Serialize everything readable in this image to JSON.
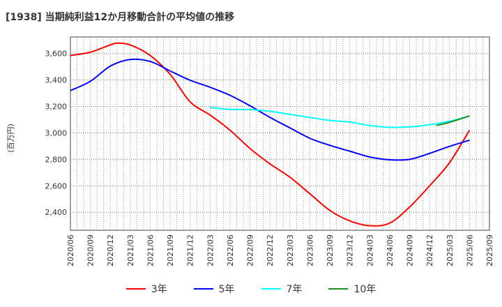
{
  "chart_data": {
    "type": "line",
    "title": "[1938]  当期純利益12か月移動合計の平均値の推移",
    "ylabel": "(百万円)",
    "xlabel": "",
    "ylim": [
      2264,
      3725
    ],
    "yticks": [
      2400,
      2600,
      2800,
      3000,
      3200,
      3400,
      3600
    ],
    "ytick_labels": [
      "2,400",
      "2,600",
      "2,800",
      "3,000",
      "3,200",
      "3,400",
      "3,600"
    ],
    "xlim": [
      "2020/06",
      "2025/09"
    ],
    "xtick_labels": [
      "2020/06",
      "2020/09",
      "2020/12",
      "2021/03",
      "2021/06",
      "2021/09",
      "2021/12",
      "2022/03",
      "2022/06",
      "2022/09",
      "2022/12",
      "2023/03",
      "2023/06",
      "2023/09",
      "2023/12",
      "2024/03",
      "2024/06",
      "2024/09",
      "2024/12",
      "2025/03",
      "2025/06",
      "2025/09"
    ],
    "grid": true,
    "legend_position": "bottom",
    "series": [
      {
        "name": "3年",
        "color": "#ff0000",
        "points": [
          [
            "2020/06",
            3585
          ],
          [
            "2020/09",
            3610
          ],
          [
            "2020/12",
            3665
          ],
          [
            "2021/01",
            3678
          ],
          [
            "2021/03",
            3665
          ],
          [
            "2021/06",
            3585
          ],
          [
            "2021/09",
            3442
          ],
          [
            "2021/12",
            3235
          ],
          [
            "2022/03",
            3135
          ],
          [
            "2022/06",
            3020
          ],
          [
            "2022/09",
            2882
          ],
          [
            "2022/12",
            2766
          ],
          [
            "2023/03",
            2665
          ],
          [
            "2023/06",
            2540
          ],
          [
            "2023/09",
            2414
          ],
          [
            "2023/12",
            2335
          ],
          [
            "2024/03",
            2298
          ],
          [
            "2024/06",
            2318
          ],
          [
            "2024/09",
            2440
          ],
          [
            "2024/12",
            2600
          ],
          [
            "2025/03",
            2775
          ],
          [
            "2025/06",
            3020
          ]
        ]
      },
      {
        "name": "5年",
        "color": "#0000ff",
        "points": [
          [
            "2020/06",
            3320
          ],
          [
            "2020/09",
            3390
          ],
          [
            "2020/12",
            3505
          ],
          [
            "2021/03",
            3555
          ],
          [
            "2021/06",
            3540
          ],
          [
            "2021/09",
            3468
          ],
          [
            "2021/12",
            3398
          ],
          [
            "2022/03",
            3345
          ],
          [
            "2022/06",
            3284
          ],
          [
            "2022/09",
            3205
          ],
          [
            "2022/12",
            3117
          ],
          [
            "2023/03",
            3038
          ],
          [
            "2023/06",
            2959
          ],
          [
            "2023/09",
            2906
          ],
          [
            "2023/12",
            2862
          ],
          [
            "2024/03",
            2818
          ],
          [
            "2024/06",
            2797
          ],
          [
            "2024/09",
            2800
          ],
          [
            "2024/12",
            2845
          ],
          [
            "2025/03",
            2898
          ],
          [
            "2025/06",
            2945
          ]
        ]
      },
      {
        "name": "7年",
        "color": "#00ffff",
        "points": [
          [
            "2022/03",
            3192
          ],
          [
            "2022/06",
            3178
          ],
          [
            "2022/09",
            3176
          ],
          [
            "2022/12",
            3163
          ],
          [
            "2023/03",
            3140
          ],
          [
            "2023/06",
            3117
          ],
          [
            "2023/09",
            3094
          ],
          [
            "2023/12",
            3082
          ],
          [
            "2024/03",
            3056
          ],
          [
            "2024/06",
            3042
          ],
          [
            "2024/09",
            3045
          ],
          [
            "2024/12",
            3062
          ],
          [
            "2025/03",
            3088
          ],
          [
            "2025/06",
            3128
          ]
        ]
      },
      {
        "name": "10年",
        "color": "#228b22",
        "points": [
          [
            "2025/01",
            3056
          ],
          [
            "2025/03",
            3080
          ],
          [
            "2025/06",
            3128
          ]
        ]
      }
    ]
  }
}
